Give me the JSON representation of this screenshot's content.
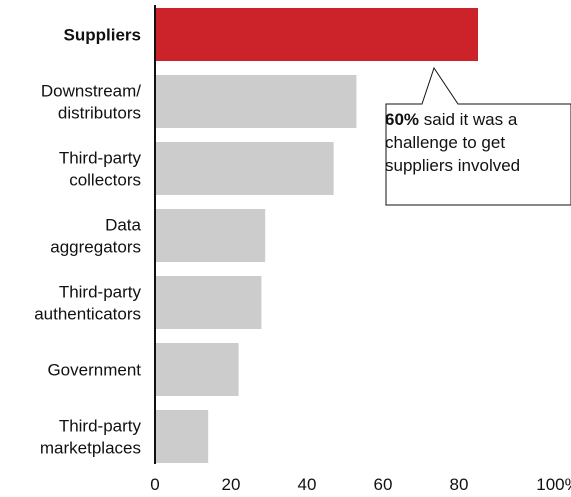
{
  "chart_data": {
    "type": "bar",
    "orientation": "horizontal",
    "categories": [
      "Suppliers",
      "Downstream/ distributors",
      "Third-party collectors",
      "Data aggregators",
      "Third-party authenticators",
      "Government",
      "Third-party marketplaces"
    ],
    "values": [
      85,
      53,
      47,
      29,
      28,
      22,
      14
    ],
    "highlight_category": "Suppliers",
    "xlim": [
      0,
      100
    ],
    "xticks": [
      "0",
      "20",
      "40",
      "60",
      "80",
      "100%"
    ],
    "grid": false,
    "colors": {
      "highlight": "#cc2229",
      "bar": "#cccccc",
      "axis": "#111111"
    },
    "annotation": {
      "emphasis": "60%",
      "text": " said it was a challenge to get suppliers involved"
    }
  }
}
